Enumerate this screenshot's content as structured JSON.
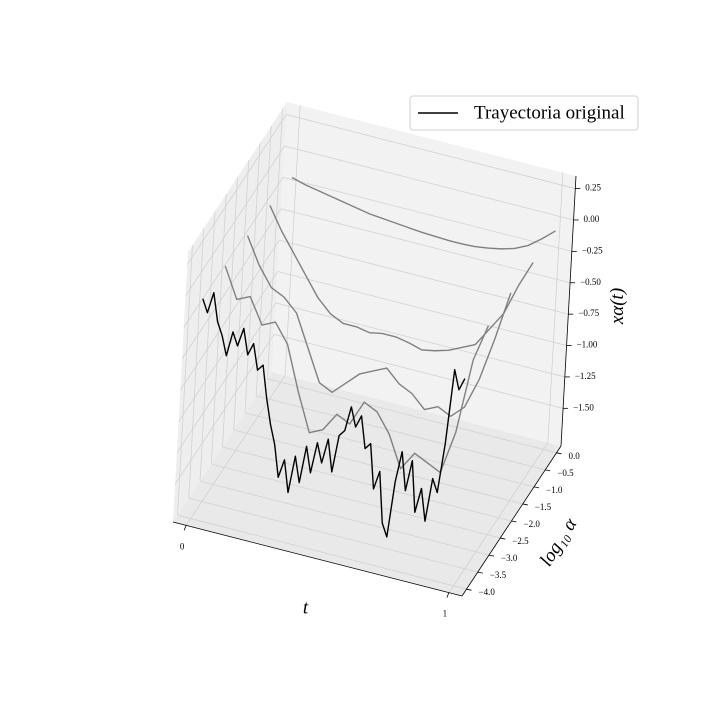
{
  "chart_data": {
    "type": "line3d",
    "xlabel": "t",
    "ylabel": "log₁₀ α",
    "zlabel": "xα(t)",
    "xlim": [
      -0.05,
      1.05
    ],
    "ylim": [
      -4.2,
      0.2
    ],
    "zlim": [
      -1.8,
      0.35
    ],
    "xticks": [
      0,
      1
    ],
    "yticks": [
      {
        "value": 0,
        "label": "0.0"
      },
      {
        "value": -0.5,
        "label": "−0.5"
      },
      {
        "value": -1,
        "label": "−1.0"
      },
      {
        "value": -1.5,
        "label": "−1.5"
      },
      {
        "value": -2,
        "label": "−2.0"
      },
      {
        "value": -2.5,
        "label": "−2.5"
      },
      {
        "value": -3,
        "label": "−3.0"
      },
      {
        "value": -3.5,
        "label": "−3.5"
      },
      {
        "value": -4,
        "label": "−4.0"
      }
    ],
    "zticks": [
      0.25,
      {
        "value": 0,
        "label": "0.00"
      },
      {
        "value": -0.25,
        "label": "−0.25"
      },
      {
        "value": -0.5,
        "label": "−0.50"
      },
      {
        "value": -0.75,
        "label": "−0.75"
      },
      {
        "value": -1,
        "label": "−1.00"
      },
      {
        "value": -1.25,
        "label": "−1.25"
      },
      {
        "value": -1.5,
        "label": "−1.50"
      }
    ],
    "grid": true,
    "legend": "upper right",
    "series": [
      {
        "name": "Trayectoria original",
        "color": "#000000",
        "alpha": -4,
        "x": [
          0,
          0.02,
          0.04,
          0.06,
          0.08,
          0.1,
          0.12,
          0.14,
          0.16,
          0.18,
          0.2,
          0.22,
          0.24,
          0.26,
          0.28,
          0.3,
          0.32,
          0.34,
          0.36,
          0.38,
          0.4,
          0.42,
          0.44,
          0.46,
          0.48,
          0.5,
          0.52,
          0.54,
          0.56,
          0.58,
          0.6,
          0.62,
          0.64,
          0.66,
          0.68,
          0.7,
          0.72,
          0.74,
          0.76,
          0.78,
          0.8,
          0.82,
          0.84,
          0.86,
          0.88,
          0.9,
          0.92,
          0.94,
          0.96,
          0.98,
          1
        ],
        "values": [
          -0.05,
          -0.15,
          0.02,
          -0.2,
          -0.3,
          -0.45,
          -0.25,
          -0.35,
          -0.2,
          -0.4,
          -0.3,
          -0.5,
          -0.45,
          -0.7,
          -0.9,
          -1.05,
          -1.3,
          -1.15,
          -1.4,
          -1.1,
          -1.3,
          -1.0,
          -1.2,
          -0.95,
          -1.1,
          -0.9,
          -1.15,
          -0.85,
          -0.8,
          -0.6,
          -0.75,
          -0.65,
          -0.9,
          -0.85,
          -1.2,
          -1.05,
          -1.45,
          -1.55,
          -1.1,
          -0.85,
          -1.15,
          -0.9,
          -1.3,
          -1.1,
          -1.35,
          -1.0,
          -1.1,
          -0.7,
          -0.1,
          -0.25,
          -0.15
        ]
      },
      {
        "color": "#808080",
        "alpha": -3,
        "x": [
          0,
          0.05,
          0.1,
          0.15,
          0.2,
          0.25,
          0.3,
          0.35,
          0.4,
          0.45,
          0.5,
          0.55,
          0.6,
          0.65,
          0.7,
          0.75,
          0.8,
          0.85,
          0.9,
          0.95,
          1
        ],
        "values": [
          -0.06,
          -0.3,
          -0.25,
          -0.45,
          -0.4,
          -0.55,
          -0.9,
          -1.2,
          -1.15,
          -1.0,
          -1.05,
          -0.85,
          -0.9,
          -1.05,
          -1.3,
          -1.15,
          -1.2,
          -1.25,
          -0.9,
          -0.3,
          0.0
        ]
      },
      {
        "color": "#808080",
        "alpha": -2,
        "x": [
          0,
          0.05,
          0.1,
          0.15,
          0.2,
          0.25,
          0.3,
          0.35,
          0.4,
          0.45,
          0.5,
          0.55,
          0.6,
          0.65,
          0.7,
          0.75,
          0.8,
          0.85,
          0.9,
          0.95,
          1
        ],
        "values": [
          -0.09,
          -0.3,
          -0.45,
          -0.5,
          -0.6,
          -0.85,
          -1.1,
          -1.15,
          -1.05,
          -0.95,
          -0.9,
          -0.85,
          -0.95,
          -1.0,
          -1.1,
          -1.05,
          -1.1,
          -1.0,
          -0.75,
          -0.4,
          -0.01
        ]
      },
      {
        "color": "#808080",
        "alpha": -1,
        "x": [
          0,
          0.05,
          0.1,
          0.15,
          0.2,
          0.25,
          0.3,
          0.35,
          0.4,
          0.45,
          0.5,
          0.55,
          0.6,
          0.65,
          0.7,
          0.75,
          0.8,
          0.85,
          0.9,
          0.95,
          1
        ],
        "values": [
          -0.12,
          -0.3,
          -0.45,
          -0.6,
          -0.75,
          -0.85,
          -0.9,
          -0.9,
          -0.92,
          -0.9,
          -0.9,
          -0.92,
          -0.95,
          -0.93,
          -0.9,
          -0.85,
          -0.8,
          -0.65,
          -0.5,
          -0.25,
          -0.04
        ]
      },
      {
        "color": "#808080",
        "alpha": 0,
        "x": [
          0,
          0.05,
          0.1,
          0.15,
          0.2,
          0.25,
          0.3,
          0.35,
          0.4,
          0.45,
          0.5,
          0.55,
          0.6,
          0.65,
          0.7,
          0.75,
          0.8,
          0.85,
          0.9,
          0.95,
          1
        ],
        "values": [
          -0.17,
          -0.2,
          -0.22,
          -0.24,
          -0.26,
          -0.28,
          -0.3,
          -0.31,
          -0.32,
          -0.33,
          -0.34,
          -0.345,
          -0.35,
          -0.35,
          -0.345,
          -0.33,
          -0.31,
          -0.28,
          -0.23,
          -0.15,
          -0.06
        ]
      }
    ]
  }
}
